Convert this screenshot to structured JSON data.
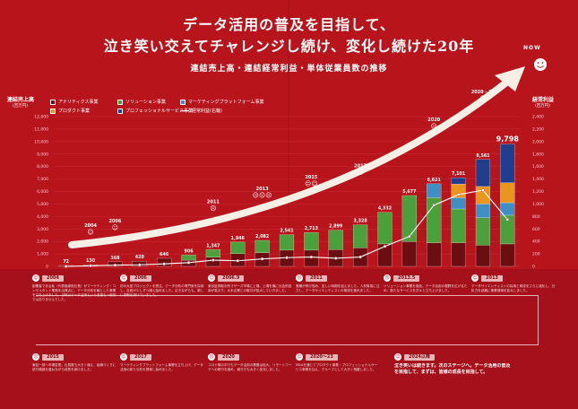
{
  "header": {
    "title_line1": "データ活用の普及を目指して、",
    "title_line2": "泣き笑い交えてチャレンジし続け、変化し続けた20年",
    "subtitle": "連結売上高・連結経常利益・単体従業員数の推移"
  },
  "axes": {
    "left_label": "連結売上高",
    "left_unit": "(百万円)",
    "right_label": "経常利益",
    "right_unit": "(百万円)"
  },
  "legend": [
    {
      "label": "アナリティクス事業",
      "color": "#6b0e12"
    },
    {
      "label": "ソリューション事業",
      "color": "#4aa13c"
    },
    {
      "label": "マーケティングプラットフォーム事業",
      "color": "#3f8ec4"
    },
    {
      "label": "プロダクト事業",
      "color": "#e8961e"
    },
    {
      "label": "プロフェッショナルサービス事業",
      "color": "#1f3f8e"
    },
    {
      "label": "経常利益(右軸)",
      "color": "#ffffff"
    }
  ],
  "now_label": "NOW",
  "chart_data": {
    "type": "bar",
    "title": "連結売上高・連結経常利益・単体従業員数の推移",
    "categories": [
      "2003年6月期",
      "2005年6月期",
      "2007年6月期",
      "2008年6月期",
      "2009年6月期",
      "2010年6月期",
      "2011年6月期",
      "2012年6月期",
      "2013年6月期",
      "2014年6月期",
      "2015年6月期",
      "2016年6月期",
      "2017年6月期",
      "2018年6月期",
      "2019年6月期",
      "2020年6月期",
      "2021年6月期",
      "2022年6月期",
      "2023年6月期"
    ],
    "cat_short": [
      "2003年",
      "2005年",
      "2007年",
      "2008年",
      "2009年",
      "2010年",
      "2011年",
      "2012年",
      "2013年",
      "2014年",
      "2015年",
      "2016年",
      "2017年",
      "2018年",
      "2019年",
      "2020年",
      "2021年",
      "2022年",
      "2023年"
    ],
    "cat_sub": [
      "6月期",
      "6月期",
      "6月期",
      "6月期",
      "6月期",
      "6月期",
      "6月期",
      "6月期",
      "6月期",
      "6月期",
      "6月期",
      "6月期",
      "6月期",
      "6月期",
      "6月期",
      "6月期",
      "6月期",
      "6月期",
      "6月期"
    ],
    "total_labels": [
      "72",
      "130",
      "368",
      "420",
      "646",
      "906",
      "1,347",
      "1,946",
      "2,082",
      "2,541",
      "2,713",
      "2,899",
      "3,328",
      "4,332",
      "5,677",
      "6,621",
      "7,101",
      "8,561",
      "9,798"
    ],
    "totals": [
      72,
      130,
      368,
      420,
      646,
      906,
      1347,
      1946,
      2082,
      2541,
      2713,
      2899,
      3328,
      4332,
      5677,
      6621,
      7101,
      8561,
      9798
    ],
    "series": [
      {
        "name": "アナリティクス事業",
        "color": "#6b0e12",
        "values": [
          72,
          130,
          368,
          420,
          646,
          500,
          740,
          1017,
          1100,
          1300,
          1300,
          1350,
          1500,
          1800,
          2000,
          1900,
          1900,
          1700,
          1800
        ]
      },
      {
        "name": "ソリューション事業",
        "color": "#4aa13c",
        "values": [
          0,
          0,
          0,
          0,
          0,
          406,
          607,
          929,
          982,
          1241,
          1413,
          1549,
          1828,
          2532,
          3677,
          3600,
          2700,
          2200,
          2300
        ]
      },
      {
        "name": "マーケティングプラットフォーム事業",
        "color": "#3f8ec4",
        "values": [
          0,
          0,
          0,
          0,
          0,
          0,
          0,
          0,
          0,
          0,
          0,
          0,
          0,
          0,
          0,
          1121,
          900,
          1100,
          1000
        ]
      },
      {
        "name": "プロダクト事業",
        "color": "#e8961e",
        "values": [
          0,
          0,
          0,
          0,
          0,
          0,
          0,
          0,
          0,
          0,
          0,
          0,
          0,
          0,
          0,
          0,
          1100,
          1400,
          1600
        ]
      },
      {
        "name": "プロフェッショナルサービス事業",
        "color": "#1f3f8e",
        "values": [
          0,
          0,
          0,
          0,
          0,
          0,
          0,
          0,
          0,
          0,
          0,
          0,
          0,
          0,
          0,
          0,
          501,
          2161,
          3098
        ]
      }
    ],
    "profit": {
      "name": "経常利益",
      "values": [
        0,
        10,
        20,
        25,
        40,
        60,
        100,
        90,
        120,
        140,
        150,
        130,
        150,
        320,
        480,
        980,
        1150,
        1220,
        750
      ]
    },
    "ylim_left": [
      0,
      12000
    ],
    "left_ticks": [
      "12,000",
      "11,000",
      "10,000",
      "9,000",
      "8,000",
      "7,000",
      "6,000",
      "5,000",
      "4,000",
      "3,000",
      "2,000",
      "1,000",
      "0"
    ],
    "ylim_right": [
      0,
      2400
    ],
    "right_ticks": [
      "2,400",
      "2,200",
      "2,000",
      "1,800",
      "1,600",
      "1,400",
      "1,200",
      "1,000",
      "800",
      "600",
      "400",
      "200",
      "0"
    ],
    "milestones": [
      {
        "label": "2004",
        "cat": 1,
        "face": "☺"
      },
      {
        "label": "2006",
        "cat": 2,
        "face": "☺"
      },
      {
        "label": "2011",
        "cat": 6,
        "face": "☹"
      },
      {
        "label": "2013",
        "cat": 8,
        "face": "☹☹☹"
      },
      {
        "label": "2015",
        "cat": 10,
        "face": "☹☺"
      },
      {
        "label": "2017",
        "cat": 12,
        "face": "☺"
      },
      {
        "label": "2020",
        "cat": 15,
        "face": "☹"
      },
      {
        "label": "2020 - 23",
        "cat": 17,
        "face": "☺"
      }
    ]
  },
  "story": [
    {
      "year": "2004",
      "face": "☺",
      "text": "創業者である私（代表取締役社長）がマーケティング・コンサルタント業務を出発点に、データ分析を軸とした事業を立ち上げました。当時はデータ活用という言葉も一般的ではありませんでした。"
    },
    {
      "year": "2006",
      "face": "☺",
      "text": "初の大型プロジェクトを受注。データ分析の専門家を採用し、社員が少しずつ増え始めました。泣きながらも、新しい挑戦を続けていました。"
    },
    {
      "year": "2006.9",
      "face": "☺",
      "text": "東京証券取引所マザーズ市場に上場。上場を機に社会的信用が高まり、大手企業との取引が拡大していきました。"
    },
    {
      "year": "2011",
      "face": "☹",
      "text": "業績が伸び悩み、苦しい時期を迎えました。人材育成に注力し、データサイエンティストの育成を進めました。"
    },
    {
      "year": "2013.5",
      "face": "☹",
      "text": "ソリューション事業を強化。データ活用の裾野を広げるため、新たなサービスを次々と立ち上げました。"
    },
    {
      "year": "2013",
      "face": "☺",
      "text": "データサイエンティストの採用と育成をさらに強化し、分析力を武器に事業領域を拡大しました。"
    },
    {
      "year": "2015",
      "face": "☹",
      "text": "東証一部へ市場変更。社員数も大きく増え、組織づくりに試行錯誤を重ねながら成長を続けました。"
    },
    {
      "year": "2017",
      "face": "☺",
      "text": "マーケティングプラットフォーム事業を立ち上げ、データ活用の新たな形を提案し始めました。"
    },
    {
      "year": "2020",
      "face": "☹",
      "text": "コロナ禍の中でもデータ活用の需要は拡大。リモートワークへの移行を進め、働き方も大きく変化しました。"
    },
    {
      "year": "2020～23",
      "face": "☺",
      "text": "M&Aを通じてプロダクト事業・プロフェッショナルサービス事業を加え、グループとして大きく飛躍しました。"
    },
    {
      "year": "2024以降",
      "face": "☺",
      "text": "泣き笑いは続きます。次のステージへ。データ活用の普及を目指して、まずは、皆様の成長を目指して。"
    }
  ]
}
